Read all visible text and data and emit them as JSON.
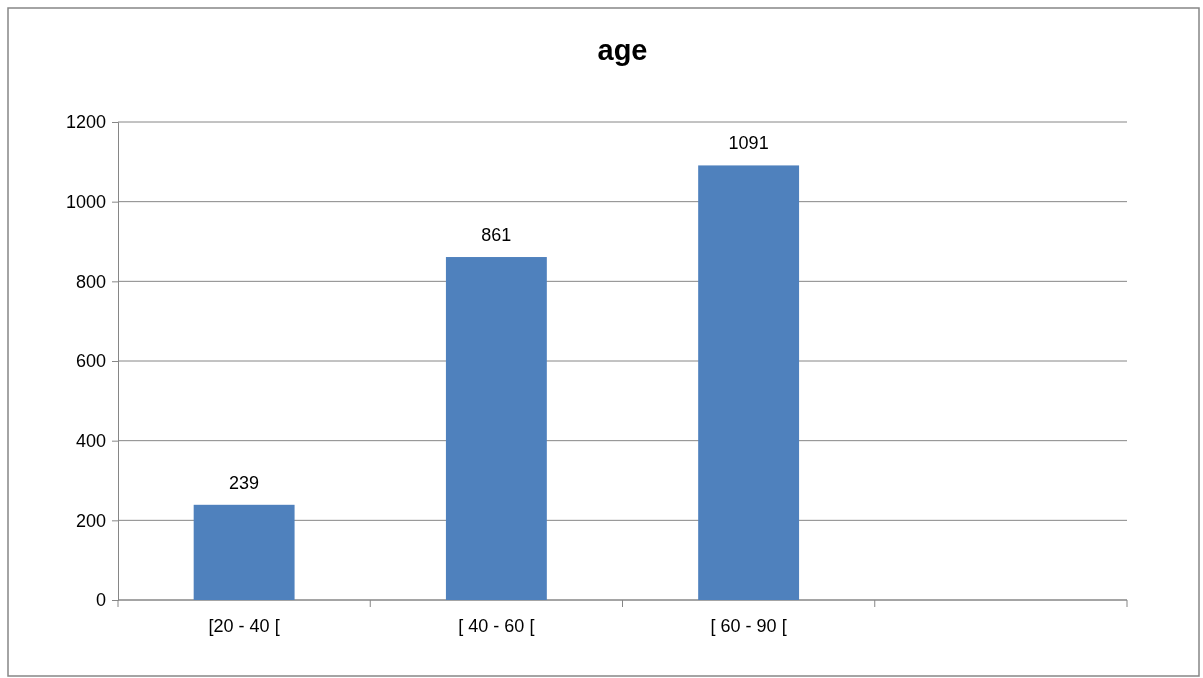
{
  "chart_data": {
    "type": "bar",
    "title": "age",
    "categories": [
      "[20 - 40 [",
      "[ 40 - 60 [",
      "[ 60 - 90 [",
      null
    ],
    "values": [
      239,
      861,
      1091,
      null
    ],
    "color": "#4f81bd",
    "ylim": [
      0,
      1200
    ],
    "yticks": [
      0,
      200,
      400,
      600,
      800,
      1000,
      1200
    ],
    "grid": "y",
    "data_labels": true
  }
}
